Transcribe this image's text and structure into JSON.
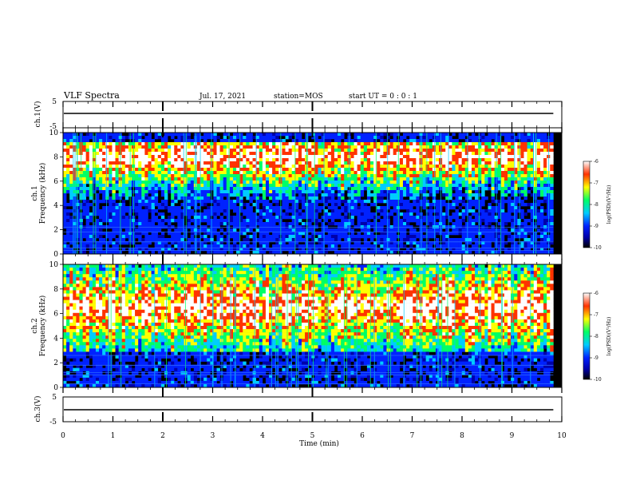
{
  "header": {
    "title": "VLF Spectra",
    "date": "Jul. 17, 2021",
    "station": "station=MOS",
    "start": "start UT =  0 : 0 : 1"
  },
  "colors": {
    "spectrogram_scale": [
      "#000000",
      "#0000aa",
      "#0022ff",
      "#00ccff",
      "#00ff66",
      "#ffff00",
      "#ff3300",
      "#ffffff"
    ]
  },
  "chart_data": [
    {
      "type": "line",
      "name": "ch.1 waveform panel",
      "ylabel": "ch.1(V)",
      "ylim": [
        -5,
        5
      ],
      "y_ticks": [
        5,
        -5
      ],
      "x": [
        0,
        9.83
      ],
      "values": [
        0,
        0
      ]
    },
    {
      "type": "heatmap",
      "name": "ch.1 spectrogram",
      "ylabel": "ch.1\nFrequency (kHz)",
      "ylim": [
        0,
        10
      ],
      "y_ticks": [
        0,
        2,
        4,
        6,
        8,
        10
      ],
      "xlim": [
        0,
        10
      ],
      "data_extent_min": 9.83,
      "colorbar": {
        "label": "log(PSD)(V²/Hz)",
        "range": [
          -10,
          -6
        ],
        "ticks": [
          -6,
          -7,
          -8,
          -9,
          -10
        ]
      },
      "band_kHz": [
        4.5,
        9.2
      ],
      "peak_kHz": 8.0,
      "lines_kHz": [
        0.3,
        0.5,
        1.0,
        1.8,
        2.2
      ]
    },
    {
      "type": "heatmap",
      "name": "ch.2 spectrogram",
      "ylabel": "ch.2\nFrequency (kHz)",
      "ylim": [
        0,
        10
      ],
      "y_ticks": [
        0,
        2,
        4,
        6,
        8,
        10
      ],
      "xlim": [
        0,
        10
      ],
      "data_extent_min": 9.83,
      "colorbar": {
        "label": "log(PSD)(V²/Hz)",
        "range": [
          -10,
          -6
        ],
        "ticks": [
          -6,
          -7,
          -8,
          -9,
          -10
        ]
      },
      "band_kHz": [
        3.0,
        10.0
      ],
      "peak_kHz": 6.5,
      "lines_kHz": [
        0.3,
        1.0,
        1.2,
        1.8,
        2.6
      ]
    },
    {
      "type": "line",
      "name": "ch.3 waveform panel",
      "ylabel": "ch.3(V)",
      "ylim": [
        -5,
        5
      ],
      "y_ticks": [
        5,
        -5
      ],
      "x": [
        0,
        9.83
      ],
      "values": [
        0,
        0
      ]
    }
  ],
  "x_axis": {
    "label": "Time (min)",
    "ticks": [
      0,
      1,
      2,
      3,
      4,
      5,
      6,
      7,
      8,
      9,
      10
    ],
    "range": [
      0,
      10
    ],
    "markers_min": [
      2.0,
      5.0
    ]
  }
}
